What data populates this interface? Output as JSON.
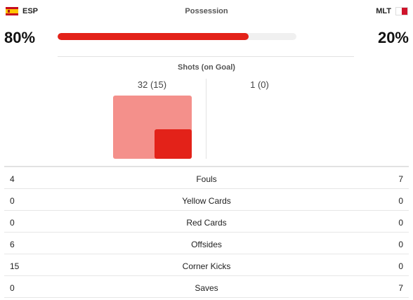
{
  "possession": {
    "title": "Possession",
    "home": {
      "code": "ESP",
      "flag": "spain-flag-icon",
      "value": "80%",
      "fraction": 0.8
    },
    "away": {
      "code": "MLT",
      "flag": "malta-flag-icon",
      "value": "20%"
    },
    "bar_color": "#e32219"
  },
  "shots": {
    "title": "Shots (on Goal)",
    "home": "32 (15)",
    "away": "1 (0)",
    "total_color": "#f4908b",
    "on_goal_color": "#e32219"
  },
  "stats": [
    {
      "label": "Fouls",
      "home": "4",
      "away": "7"
    },
    {
      "label": "Yellow Cards",
      "home": "0",
      "away": "0"
    },
    {
      "label": "Red Cards",
      "home": "0",
      "away": "0"
    },
    {
      "label": "Offsides",
      "home": "6",
      "away": "0"
    },
    {
      "label": "Corner Kicks",
      "home": "15",
      "away": "0"
    },
    {
      "label": "Saves",
      "home": "0",
      "away": "7"
    }
  ]
}
